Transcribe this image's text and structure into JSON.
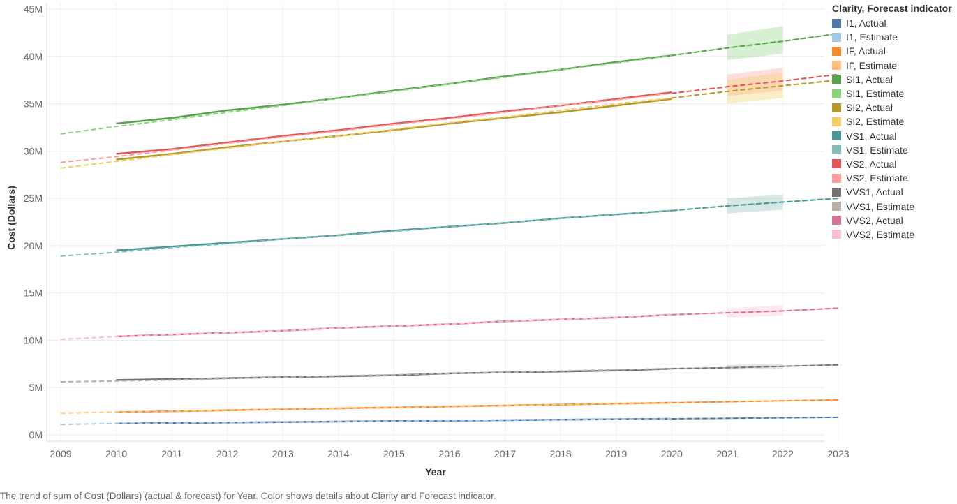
{
  "chart_data": {
    "type": "line",
    "xlabel": "Year",
    "ylabel": "Cost (Dollars)",
    "x": [
      2009,
      2010,
      2011,
      2012,
      2013,
      2014,
      2015,
      2016,
      2017,
      2018,
      2019,
      2020,
      2021,
      2022,
      2023
    ],
    "x_tick_labels": [
      "2009",
      "2010",
      "2011",
      "2012",
      "2013",
      "2014",
      "2015",
      "2016",
      "2017",
      "2018",
      "2019",
      "2020",
      "2021",
      "2022",
      "2023"
    ],
    "ylim": [
      0,
      45000000
    ],
    "y_ticks": [
      0,
      5000000,
      10000000,
      15000000,
      20000000,
      25000000,
      30000000,
      35000000,
      40000000,
      45000000
    ],
    "y_tick_labels": [
      "0M",
      "5M",
      "10M",
      "15M",
      "20M",
      "25M",
      "30M",
      "35M",
      "40M",
      "45M"
    ],
    "grid": true,
    "legend_position": "right",
    "legend_title": "Clarity, Forecast indicator",
    "series": [
      {
        "name": "I1, Actual",
        "color": "#4e79a7",
        "style": "solid",
        "x": [
          2010,
          2011,
          2012,
          2013,
          2014,
          2015,
          2016,
          2017,
          2018,
          2019,
          2020
        ],
        "values": [
          1.2,
          1.25,
          1.3,
          1.35,
          1.4,
          1.45,
          1.5,
          1.55,
          1.6,
          1.65,
          1.7
        ]
      },
      {
        "name": "I1, Estimate",
        "color": "#a0cbe8",
        "style": "dashed",
        "x": [
          2009,
          2010,
          2011,
          2012,
          2013,
          2014,
          2015,
          2016,
          2017,
          2018,
          2019,
          2020,
          2021,
          2022,
          2023
        ],
        "values": [
          1.1,
          1.2,
          1.25,
          1.3,
          1.35,
          1.4,
          1.45,
          1.5,
          1.55,
          1.6,
          1.65,
          1.7,
          1.75,
          1.8,
          1.85
        ]
      },
      {
        "name": "IF, Actual",
        "color": "#f28e2b",
        "style": "solid",
        "x": [
          2010,
          2011,
          2012,
          2013,
          2014,
          2015,
          2016,
          2017,
          2018,
          2019,
          2020
        ],
        "values": [
          2.4,
          2.5,
          2.6,
          2.7,
          2.8,
          2.9,
          3.0,
          3.1,
          3.2,
          3.3,
          3.4
        ]
      },
      {
        "name": "IF, Estimate",
        "color": "#ffbe7d",
        "style": "dashed",
        "x": [
          2009,
          2010,
          2011,
          2012,
          2013,
          2014,
          2015,
          2016,
          2017,
          2018,
          2019,
          2020,
          2021,
          2022,
          2023
        ],
        "values": [
          2.3,
          2.4,
          2.5,
          2.6,
          2.7,
          2.8,
          2.9,
          3.0,
          3.1,
          3.2,
          3.3,
          3.4,
          3.5,
          3.6,
          3.7
        ]
      },
      {
        "name": "SI1, Actual",
        "color": "#59a14f",
        "style": "solid",
        "x": [
          2010,
          2011,
          2012,
          2013,
          2014,
          2015,
          2016,
          2017,
          2018,
          2019,
          2020
        ],
        "values": [
          32.9,
          33.5,
          34.3,
          34.9,
          35.6,
          36.4,
          37.1,
          37.9,
          38.6,
          39.4,
          40.1
        ]
      },
      {
        "name": "SI1, Estimate",
        "color": "#8cd17d",
        "style": "dashed",
        "x": [
          2009,
          2010,
          2011,
          2012,
          2013,
          2014,
          2015,
          2016,
          2017,
          2018,
          2019,
          2020,
          2021,
          2022,
          2023
        ],
        "values": [
          31.8,
          32.6,
          33.3,
          34.1,
          34.8,
          35.6,
          36.3,
          37.1,
          37.8,
          38.6,
          39.3,
          40.1,
          40.9,
          41.6,
          42.4
        ]
      },
      {
        "name": "SI2, Actual",
        "color": "#b6992d",
        "style": "solid",
        "x": [
          2010,
          2011,
          2012,
          2013,
          2014,
          2015,
          2016,
          2017,
          2018,
          2019,
          2020
        ],
        "values": [
          29.1,
          29.7,
          30.4,
          31.0,
          31.6,
          32.2,
          32.9,
          33.5,
          34.1,
          34.8,
          35.5
        ]
      },
      {
        "name": "SI2, Estimate",
        "color": "#f1ce63",
        "style": "dashed",
        "x": [
          2009,
          2010,
          2011,
          2012,
          2013,
          2014,
          2015,
          2016,
          2017,
          2018,
          2019,
          2020,
          2021,
          2022,
          2023
        ],
        "values": [
          28.2,
          28.9,
          29.6,
          30.3,
          31.0,
          31.6,
          32.3,
          33.0,
          33.6,
          34.3,
          35.0,
          35.6,
          36.3,
          36.9,
          37.5
        ]
      },
      {
        "name": "VS1, Actual",
        "color": "#499894",
        "style": "solid",
        "x": [
          2010,
          2011,
          2012,
          2013,
          2014,
          2015,
          2016,
          2017,
          2018,
          2019,
          2020
        ],
        "values": [
          19.5,
          19.9,
          20.3,
          20.7,
          21.1,
          21.6,
          22.0,
          22.4,
          22.9,
          23.3,
          23.7
        ]
      },
      {
        "name": "VS1, Estimate",
        "color": "#86bcb6",
        "style": "dashed",
        "x": [
          2009,
          2010,
          2011,
          2012,
          2013,
          2014,
          2015,
          2016,
          2017,
          2018,
          2019,
          2020,
          2021,
          2022,
          2023
        ],
        "values": [
          18.9,
          19.3,
          19.8,
          20.2,
          20.7,
          21.1,
          21.5,
          22.0,
          22.4,
          22.9,
          23.3,
          23.7,
          24.2,
          24.6,
          25.0
        ]
      },
      {
        "name": "VS2, Actual",
        "color": "#e15759",
        "style": "solid",
        "x": [
          2010,
          2011,
          2012,
          2013,
          2014,
          2015,
          2016,
          2017,
          2018,
          2019,
          2020
        ],
        "values": [
          29.7,
          30.2,
          30.9,
          31.6,
          32.2,
          32.9,
          33.5,
          34.2,
          34.8,
          35.5,
          36.2
        ]
      },
      {
        "name": "VS2, Estimate",
        "color": "#ff9d9a",
        "style": "dashed",
        "x": [
          2009,
          2010,
          2011,
          2012,
          2013,
          2014,
          2015,
          2016,
          2017,
          2018,
          2019,
          2020,
          2021,
          2022,
          2023
        ],
        "values": [
          28.8,
          29.4,
          30.1,
          30.8,
          31.5,
          32.1,
          32.8,
          33.4,
          34.1,
          34.8,
          35.4,
          36.1,
          36.8,
          37.4,
          38.1
        ]
      },
      {
        "name": "VVS1, Actual",
        "color": "#79706e",
        "style": "solid",
        "x": [
          2010,
          2011,
          2012,
          2013,
          2014,
          2015,
          2016,
          2017,
          2018,
          2019,
          2020
        ],
        "values": [
          5.8,
          5.9,
          6.0,
          6.1,
          6.2,
          6.3,
          6.5,
          6.6,
          6.7,
          6.8,
          7.0
        ]
      },
      {
        "name": "VVS1, Estimate",
        "color": "#bab0ac",
        "style": "dashed",
        "x": [
          2009,
          2010,
          2011,
          2012,
          2013,
          2014,
          2015,
          2016,
          2017,
          2018,
          2019,
          2020,
          2021,
          2022,
          2023
        ],
        "values": [
          5.6,
          5.7,
          5.8,
          5.95,
          6.1,
          6.25,
          6.35,
          6.5,
          6.6,
          6.75,
          6.9,
          7.0,
          7.1,
          7.25,
          7.4
        ]
      },
      {
        "name": "VVS2, Actual",
        "color": "#d37295",
        "style": "solid",
        "x": [
          2010,
          2011,
          2012,
          2013,
          2014,
          2015,
          2016,
          2017,
          2018,
          2019,
          2020
        ],
        "values": [
          10.4,
          10.6,
          10.8,
          11.0,
          11.3,
          11.5,
          11.7,
          12.0,
          12.2,
          12.4,
          12.7
        ]
      },
      {
        "name": "VVS2, Estimate",
        "color": "#fabfd2",
        "style": "dashed",
        "x": [
          2009,
          2010,
          2011,
          2012,
          2013,
          2014,
          2015,
          2016,
          2017,
          2018,
          2019,
          2020,
          2021,
          2022,
          2023
        ],
        "values": [
          10.1,
          10.4,
          10.6,
          10.8,
          11.0,
          11.3,
          11.5,
          11.7,
          12.0,
          12.2,
          12.4,
          12.7,
          12.9,
          13.1,
          13.4
        ]
      }
    ],
    "forecast_dashed_line_colors": {
      "I1": "#4e79a7",
      "IF": "#f28e2b",
      "SI1": "#59a14f",
      "SI2": "#b6992d",
      "VS1": "#499894",
      "VS2": "#e15759",
      "VVS1": "#79706e",
      "VVS2": "#d37295"
    },
    "forecast_bands": [
      {
        "series": "SI1",
        "color": "#8cd17d",
        "x": [
          2021,
          2022
        ],
        "low": [
          39.6,
          40.3
        ],
        "high": [
          42.3,
          43.2
        ]
      },
      {
        "series": "VS2",
        "color": "#ff9d9a",
        "x": [
          2021,
          2022
        ],
        "low": [
          35.8,
          36.4
        ],
        "high": [
          38.1,
          38.8
        ]
      },
      {
        "series": "SI2",
        "color": "#f1ce63",
        "x": [
          2021,
          2022
        ],
        "low": [
          35.0,
          35.6
        ],
        "high": [
          37.5,
          38.3
        ]
      },
      {
        "series": "VS1",
        "color": "#86bcb6",
        "x": [
          2021,
          2022
        ],
        "low": [
          23.4,
          23.8
        ],
        "high": [
          25.0,
          25.4
        ]
      },
      {
        "series": "VVS2",
        "color": "#fabfd2",
        "x": [
          2021,
          2022
        ],
        "low": [
          12.4,
          12.6
        ],
        "high": [
          13.4,
          13.7
        ]
      },
      {
        "series": "VVS1",
        "color": "#bab0ac",
        "x": [
          2021,
          2022
        ],
        "low": [
          6.9,
          7.0
        ],
        "high": [
          7.4,
          7.5
        ]
      }
    ],
    "value_unit": "M"
  },
  "caption": "The trend of sum of Cost (Dollars) (actual & forecast)  for Year.  Color shows details about Clarity and Forecast indicator."
}
